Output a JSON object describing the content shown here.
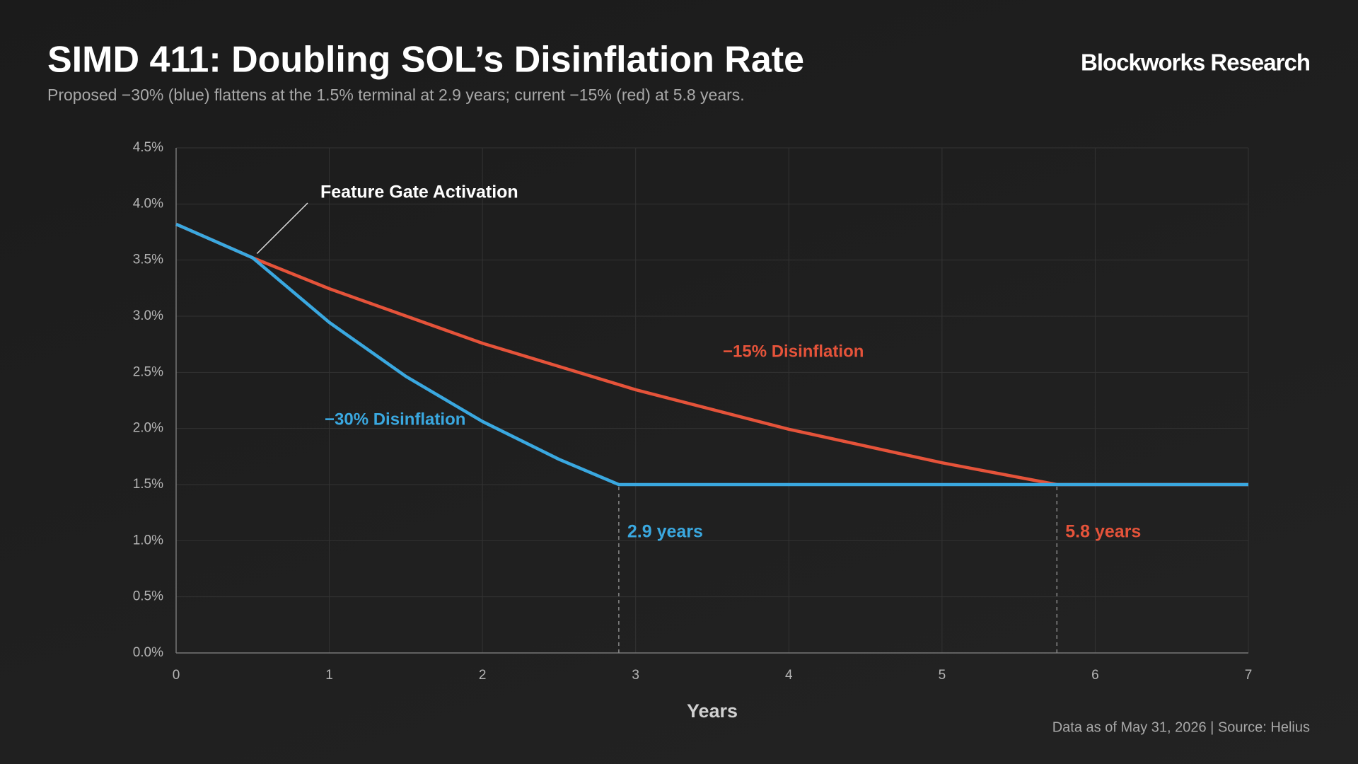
{
  "chart_data": {
    "type": "line",
    "title": "SIMD 411: Doubling SOL’s Disinflation Rate",
    "subtitle": "Proposed −30% (blue) flattens at the 1.5% terminal at 2.9 years; current −15% (red) at 5.8 years.",
    "brand": "Blockworks Research",
    "footer": "Data as of May 31, 2026 | Source: Helius",
    "xlabel": "Years",
    "xlim": [
      0,
      7
    ],
    "xticks": [
      0,
      1,
      2,
      3,
      4,
      5,
      6,
      7
    ],
    "ylim": [
      0,
      4.5
    ],
    "yticks": [
      {
        "value": 0,
        "label": "0.0%"
      },
      {
        "value": 0.5,
        "label": "0.5%"
      },
      {
        "value": 1,
        "label": "1.0%"
      },
      {
        "value": 1.5,
        "label": "1.5%"
      },
      {
        "value": 2,
        "label": "2.0%"
      },
      {
        "value": 2.5,
        "label": "2.5%"
      },
      {
        "value": 3,
        "label": "3.0%"
      },
      {
        "value": 3.5,
        "label": "3.5%"
      },
      {
        "value": 4,
        "label": "4.0%"
      },
      {
        "value": 4.5,
        "label": "4.5%"
      }
    ],
    "grid": true,
    "series": [
      {
        "name": "−15% Disinflation",
        "color": "#e5533a",
        "x": [
          0,
          0.5,
          1,
          2,
          3,
          4,
          5,
          5.75,
          7
        ],
        "values": [
          3.82,
          3.52,
          3.245,
          2.759,
          2.345,
          1.993,
          1.694,
          1.5,
          1.5
        ]
      },
      {
        "name": "−30% Disinflation",
        "color": "#3aa8e0",
        "x": [
          0,
          0.5,
          1,
          1.5,
          2,
          2.5,
          2.89,
          7
        ],
        "values": [
          3.82,
          3.52,
          2.945,
          2.464,
          2.062,
          1.725,
          1.5,
          1.5
        ]
      }
    ],
    "annotation": "Feature Gate Activation",
    "vlines": [
      {
        "x": 2.89,
        "label": "2.9 years",
        "color": "#3aa8e0"
      },
      {
        "x": 5.75,
        "label": "5.8 years",
        "color": "#e5533a"
      }
    ]
  }
}
